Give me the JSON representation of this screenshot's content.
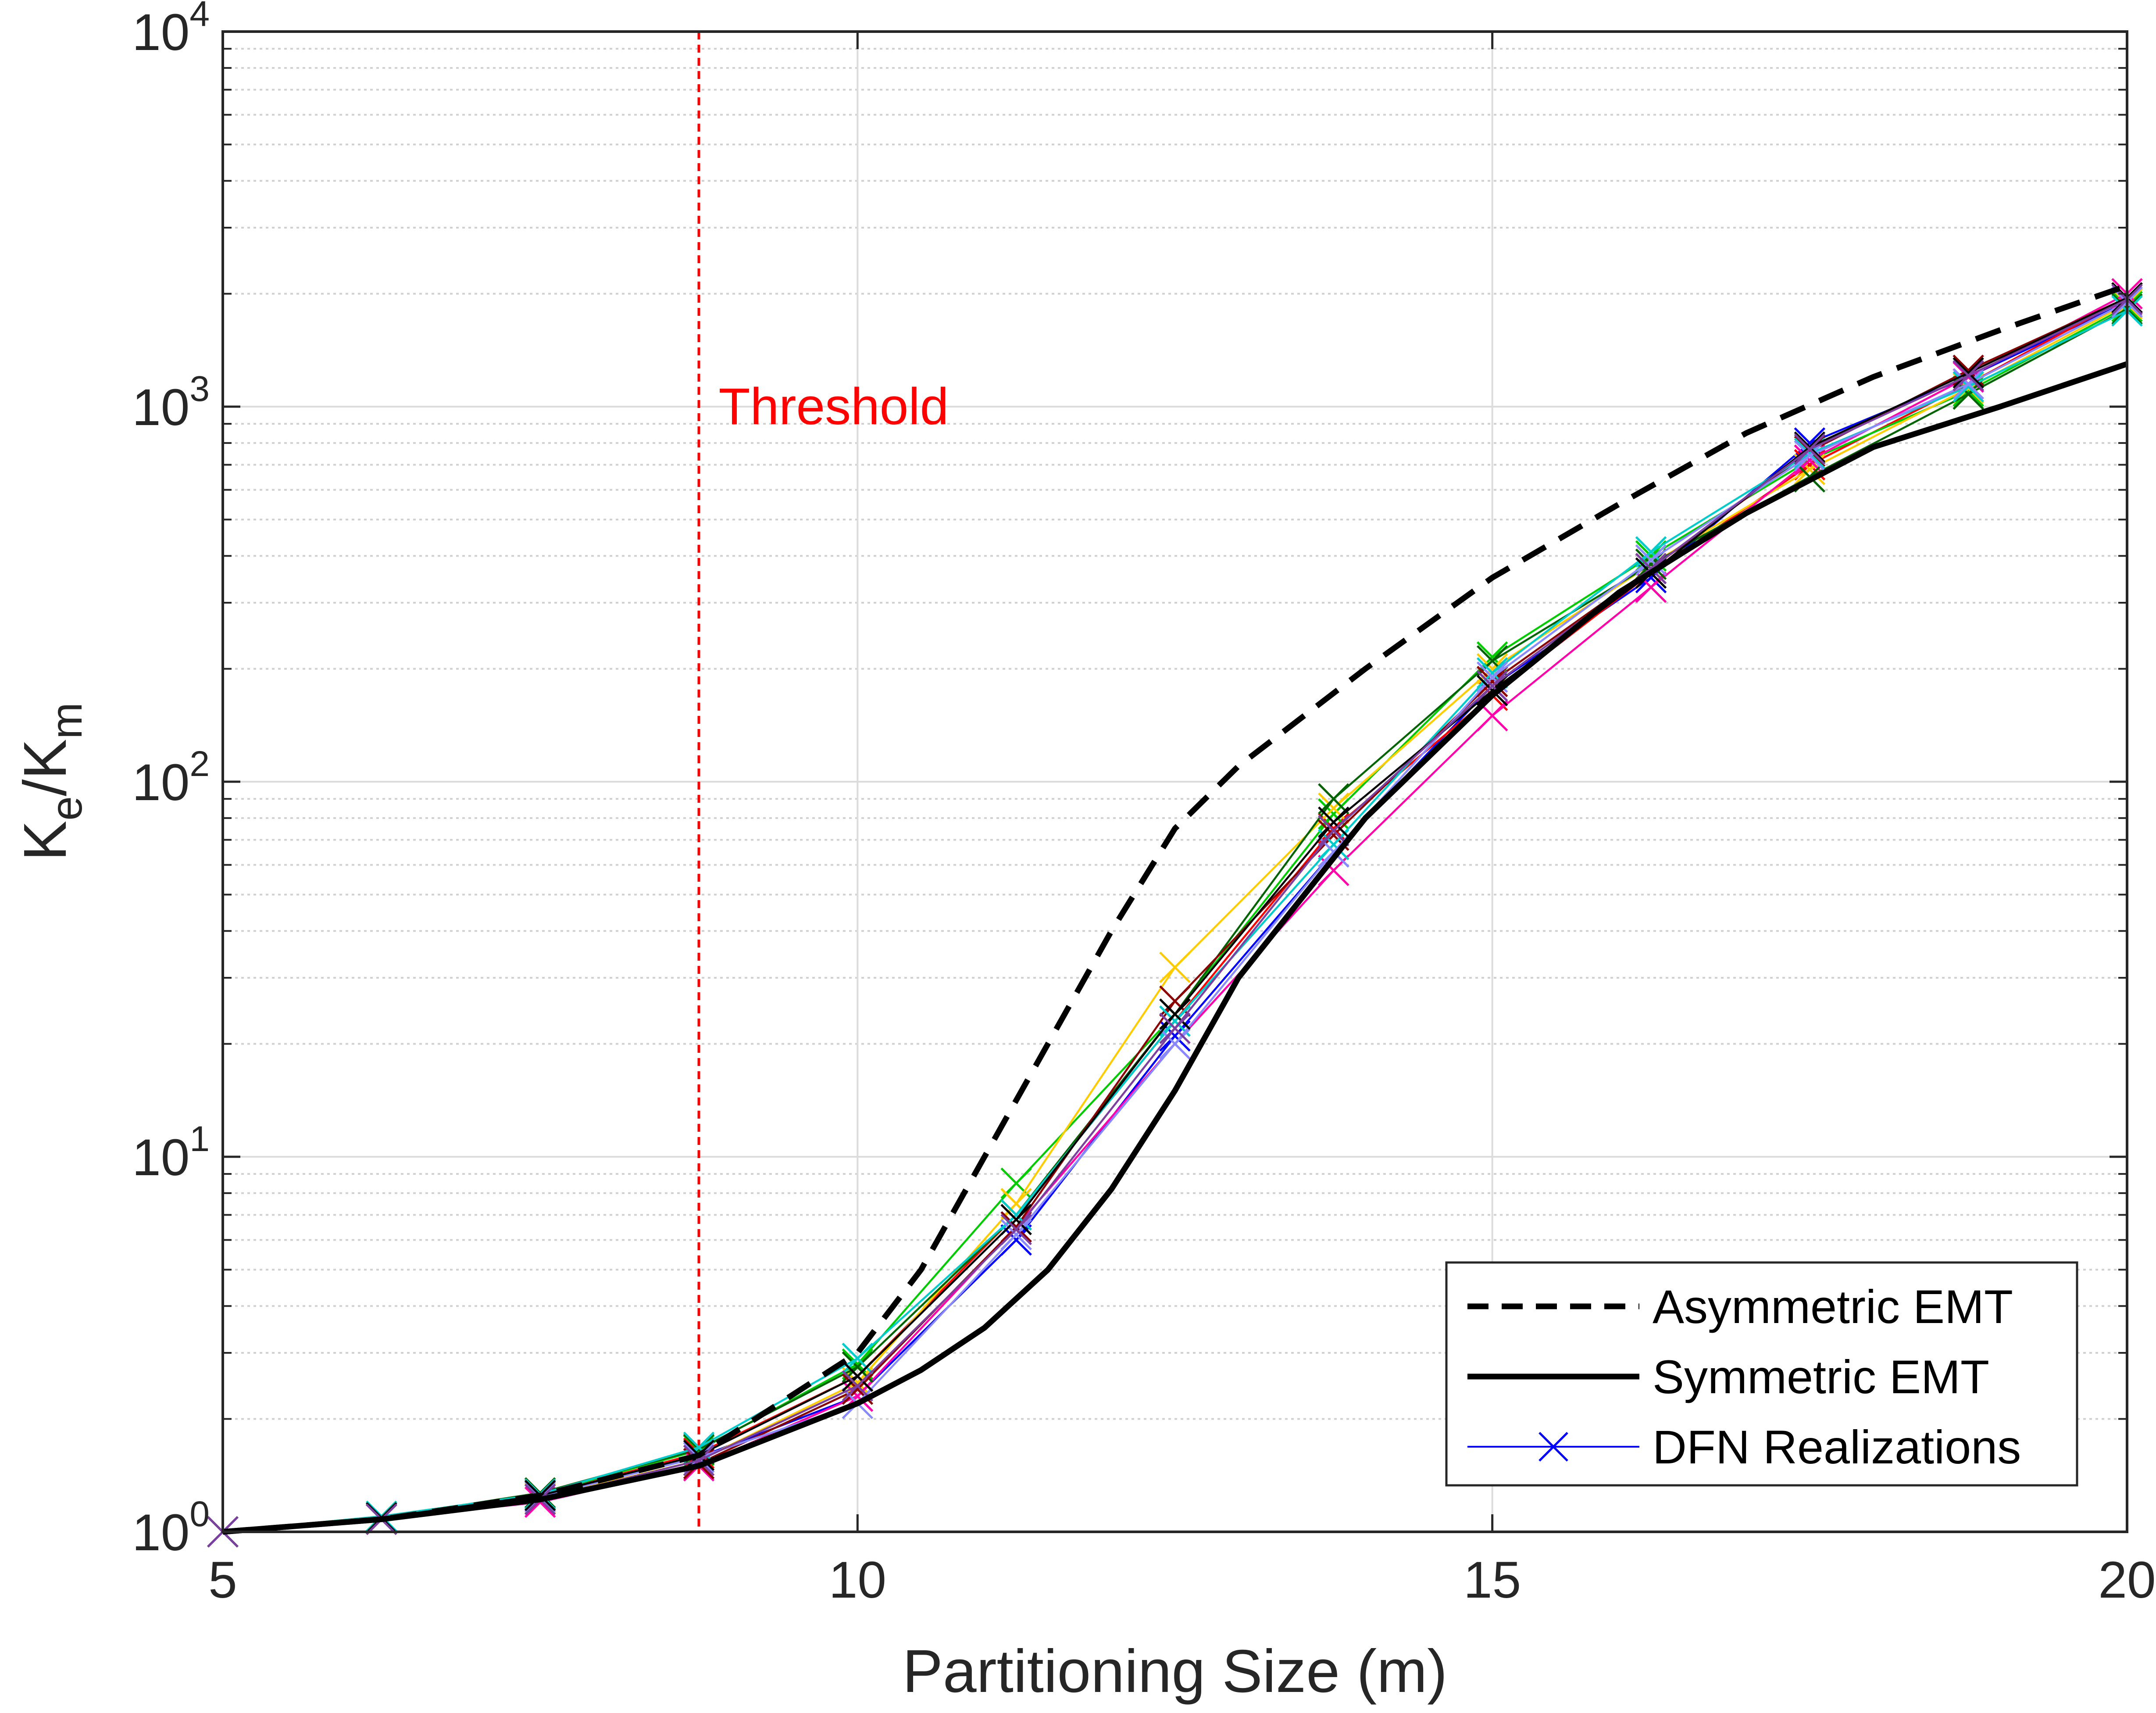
{
  "chart_data": {
    "type": "line",
    "xlabel": "Partitioning Size (m)",
    "ylabel": "K_e/K_m",
    "ylabel_parts": {
      "base1": "K",
      "sub1": "e",
      "slash": "/",
      "base2": "K",
      "sub2": "m"
    },
    "xlim": [
      5,
      20
    ],
    "ylim": [
      1,
      10000
    ],
    "yscale": "log",
    "grid": true,
    "minor_grid_y": true,
    "legend_position": "bottom-right",
    "x_ticks": [
      "5",
      "10",
      "15",
      "20"
    ],
    "y_ticks": [
      {
        "base": "10",
        "exp": "0"
      },
      {
        "base": "10",
        "exp": "1"
      },
      {
        "base": "10",
        "exp": "2"
      },
      {
        "base": "10",
        "exp": "3"
      },
      {
        "base": "10",
        "exp": "4"
      }
    ],
    "threshold": {
      "x": 8.75,
      "label": "Threshold",
      "color": "#ff0000"
    },
    "legend": [
      {
        "label": "Asymmetric EMT",
        "style": "dashed-black"
      },
      {
        "label": "Symmetric EMT",
        "style": "solid-black"
      },
      {
        "label": "DFN Realizations",
        "style": "blue-x"
      }
    ],
    "series": [
      {
        "name": "Asymmetric EMT",
        "color": "#000000",
        "style": "dashed",
        "x": [
          5,
          6.25,
          7.5,
          8.75,
          10,
          10.5,
          11,
          11.5,
          12,
          12.5,
          13,
          14,
          15,
          16,
          17,
          18,
          19,
          20
        ],
        "y": [
          1.0,
          1.08,
          1.25,
          1.6,
          3.0,
          5.0,
          10.0,
          20.0,
          40.0,
          75.0,
          110.0,
          200.0,
          350.0,
          550.0,
          850.0,
          1200.0,
          1600.0,
          2100.0
        ]
      },
      {
        "name": "Symmetric EMT",
        "color": "#000000",
        "style": "solid",
        "x": [
          5,
          6.25,
          7.5,
          8.75,
          10,
          10.5,
          11,
          11.5,
          12,
          12.5,
          13,
          14,
          15,
          16,
          17,
          18,
          19,
          20
        ],
        "y": [
          1.0,
          1.08,
          1.22,
          1.5,
          2.2,
          2.7,
          3.5,
          5.0,
          8.2,
          15.0,
          30.0,
          80.0,
          170.0,
          320.0,
          520.0,
          780.0,
          1000.0,
          1300.0
        ]
      },
      {
        "name": "DFN Realizations",
        "color": "#0000ff",
        "style": "x-markers",
        "x": [
          5,
          6.25,
          7.5,
          8.75,
          10,
          11.25,
          12.5,
          13.75,
          15,
          16.25,
          17.5,
          18.75,
          20
        ],
        "y": [
          1.0,
          1.09,
          1.24,
          1.58,
          2.3,
          6.0,
          21.0,
          65.0,
          180.0,
          350.0,
          800.0,
          1200.0,
          1900.0
        ]
      },
      {
        "color": "#ff0000",
        "style": "x-markers",
        "x": [
          5,
          6.25,
          7.5,
          8.75,
          10,
          11.25,
          12.5,
          13.75,
          15,
          16.25,
          17.5,
          18.75,
          20
        ],
        "y": [
          1.0,
          1.08,
          1.25,
          1.62,
          2.6,
          7.0,
          23.0,
          75.0,
          170.0,
          360.0,
          700.0,
          1150.0,
          1950.0
        ]
      },
      {
        "color": "#00cc00",
        "style": "x-markers",
        "x": [
          5,
          6.25,
          7.5,
          8.75,
          10,
          11.25,
          12.5,
          13.75,
          15,
          16.25,
          17.5,
          18.75,
          20
        ],
        "y": [
          1.0,
          1.1,
          1.26,
          1.65,
          2.8,
          8.5,
          24.0,
          82.0,
          215.0,
          400.0,
          720.0,
          1100.0,
          1850.0
        ]
      },
      {
        "color": "#ffcc00",
        "style": "x-markers",
        "x": [
          5,
          6.25,
          7.5,
          8.75,
          10,
          11.25,
          12.5,
          13.75,
          15,
          16.25,
          17.5,
          18.75,
          20
        ],
        "y": [
          1.0,
          1.08,
          1.23,
          1.55,
          2.5,
          7.5,
          32.0,
          85.0,
          200.0,
          380.0,
          680.0,
          1120.0,
          1880.0
        ]
      },
      {
        "color": "#ff00aa",
        "style": "x-markers",
        "x": [
          5,
          6.25,
          7.5,
          8.75,
          10,
          11.25,
          12.5,
          13.75,
          15,
          16.25,
          17.5,
          18.75,
          20
        ],
        "y": [
          1.0,
          1.08,
          1.2,
          1.5,
          2.3,
          6.5,
          20.0,
          58.0,
          150.0,
          330.0,
          720.0,
          1200.0,
          2000.0
        ]
      },
      {
        "color": "#006400",
        "style": "x-markers",
        "x": [
          5,
          6.25,
          7.5,
          8.75,
          10,
          11.25,
          12.5,
          13.75,
          15,
          16.25,
          17.5,
          18.75,
          20
        ],
        "y": [
          1.0,
          1.09,
          1.27,
          1.66,
          2.75,
          7.0,
          24.0,
          90.0,
          210.0,
          380.0,
          650.0,
          1080.0,
          1820.0
        ]
      },
      {
        "color": "#8b0000",
        "style": "x-markers",
        "x": [
          5,
          6.25,
          7.5,
          8.75,
          10,
          11.25,
          12.5,
          13.75,
          15,
          16.25,
          17.5,
          18.75,
          20
        ],
        "y": [
          1.0,
          1.08,
          1.22,
          1.52,
          2.4,
          6.5,
          26.0,
          72.0,
          185.0,
          370.0,
          760.0,
          1250.0,
          1950.0
        ]
      },
      {
        "color": "#00cccc",
        "style": "x-markers",
        "x": [
          5,
          6.25,
          7.5,
          8.75,
          10,
          11.25,
          12.5,
          13.75,
          15,
          16.25,
          17.5,
          18.75,
          20
        ],
        "y": [
          1.0,
          1.1,
          1.26,
          1.68,
          2.9,
          7.0,
          23.0,
          68.0,
          195.0,
          410.0,
          750.0,
          1130.0,
          1800.0
        ]
      },
      {
        "color": "#8888ff",
        "style": "x-markers",
        "x": [
          5,
          6.25,
          7.5,
          8.75,
          10,
          11.25,
          12.5,
          13.75,
          15,
          16.25,
          17.5,
          18.75,
          20
        ],
        "y": [
          1.0,
          1.08,
          1.24,
          1.58,
          2.2,
          6.2,
          20.0,
          65.0,
          190.0,
          390.0,
          740.0,
          1150.0,
          1900.0
        ]
      },
      {
        "color": "#000000",
        "style": "x-markers-thin",
        "x": [
          5,
          6.25,
          7.5,
          8.75,
          10,
          11.25,
          12.5,
          13.75,
          15,
          16.25,
          17.5,
          18.75,
          20
        ],
        "y": [
          1.0,
          1.09,
          1.25,
          1.6,
          2.6,
          6.8,
          24.0,
          78.0,
          175.0,
          360.0,
          780.0,
          1230.0,
          1950.0
        ]
      },
      {
        "color": "#7b3fa0",
        "style": "x-markers",
        "x": [
          5,
          6.25,
          7.5,
          8.75,
          10,
          11.25,
          12.5,
          13.75,
          15,
          16.25,
          17.5,
          18.75,
          20
        ],
        "y": [
          1.0,
          1.08,
          1.22,
          1.55,
          2.45,
          6.4,
          22.0,
          74.0,
          180.0,
          370.0,
          770.0,
          1210.0,
          1930.0
        ]
      }
    ]
  }
}
